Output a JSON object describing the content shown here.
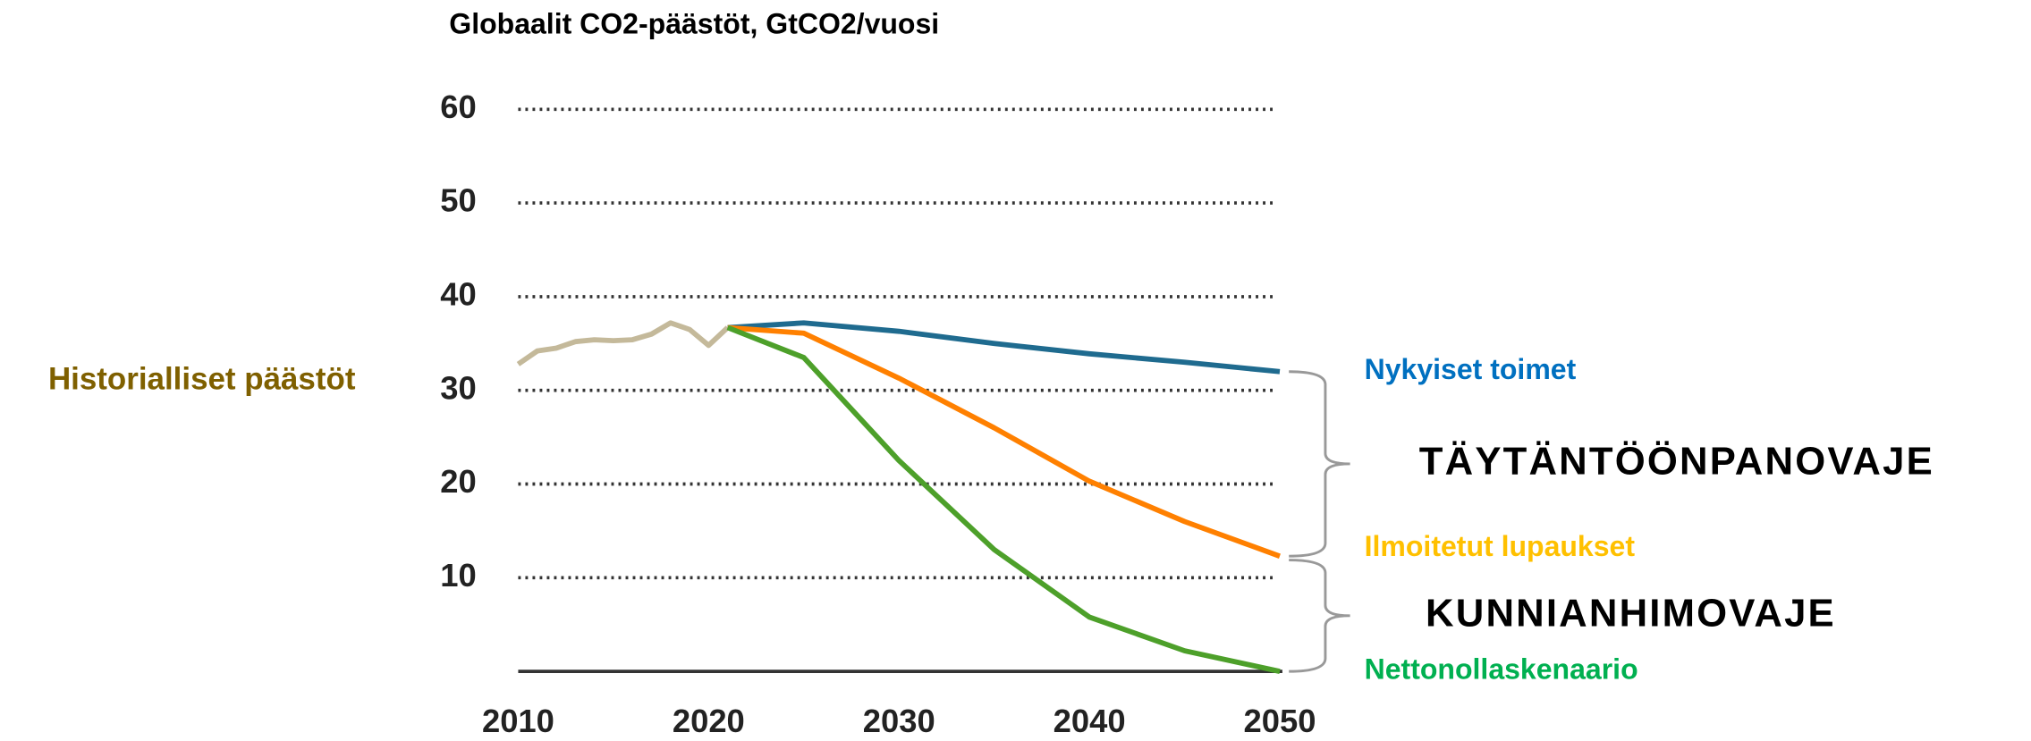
{
  "chart_data": {
    "type": "line",
    "title": "Globaalit CO2-päästöt, GtCO2/vuosi",
    "xlim": [
      2010,
      2050
    ],
    "xticks": [
      2010,
      2020,
      2030,
      2040,
      2050
    ],
    "ylim": [
      0,
      60
    ],
    "yticks": [
      10,
      20,
      30,
      40,
      50,
      60
    ],
    "grid": true,
    "series": [
      {
        "name": "Historialliset päästöt",
        "color": "#c4b99a",
        "label_color": "#7f6000",
        "x": [
          2010,
          2011,
          2012,
          2013,
          2014,
          2015,
          2016,
          2017,
          2018,
          2019,
          2020,
          2021
        ],
        "values": [
          32.8,
          34.2,
          34.5,
          35.2,
          35.4,
          35.3,
          35.4,
          36,
          37.2,
          36.5,
          34.8,
          36.7
        ]
      },
      {
        "name": "Nykyiset toimet",
        "color": "#1f6b8f",
        "label_color": "#0070c0",
        "x": [
          2021,
          2025,
          2030,
          2035,
          2040,
          2045,
          2050
        ],
        "values": [
          36.7,
          37.2,
          36.3,
          35,
          33.9,
          33,
          32
        ]
      },
      {
        "name": "Ilmoitetut lupaukset",
        "color": "#ff8000",
        "label_color": "#ffc000",
        "x": [
          2021,
          2025,
          2030,
          2035,
          2040,
          2045,
          2050
        ],
        "values": [
          36.7,
          36.1,
          31.3,
          26,
          20.3,
          16,
          12.3
        ]
      },
      {
        "name": "Nettonollaskenaario",
        "color": "#4da02a",
        "label_color": "#00b050",
        "x": [
          2021,
          2025,
          2030,
          2035,
          2040,
          2045,
          2050
        ],
        "values": [
          36.7,
          33.5,
          22.5,
          13,
          5.8,
          2.2,
          0
        ]
      }
    ],
    "annotations": [
      "TÄYTÄNTÖÖNPANOVAJE",
      "KUNNIANHIMOVAJE"
    ]
  }
}
